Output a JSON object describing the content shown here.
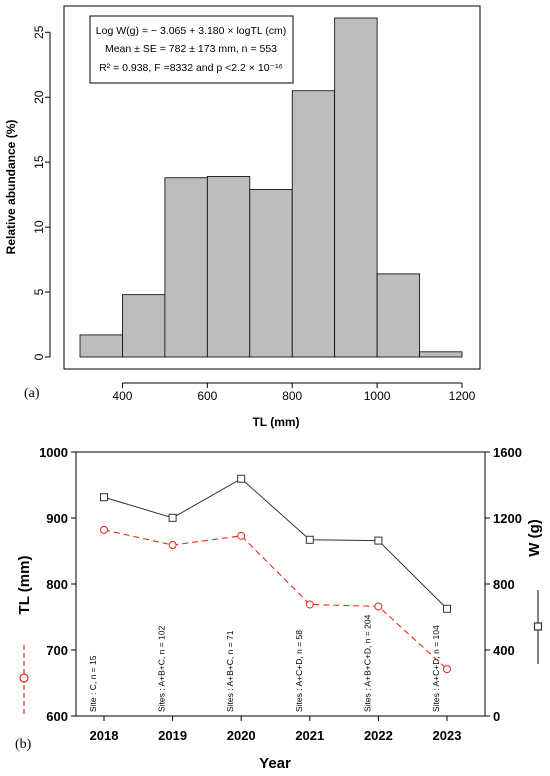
{
  "figure": {
    "panel_a_label": "(a)",
    "panel_b_label": "(b)",
    "stats": {
      "line1": "Log W(g) = − 3.065 + 3.180 × logTL (cm)",
      "line2": "Mean ± SE = 782 ± 173 mm, n = 553",
      "line3": "R² = 0.938, F =8332 and p <2.2 × 10⁻¹⁶"
    }
  },
  "chart_data": [
    {
      "type": "bar",
      "subtype": "histogram",
      "bins": [
        [
          300,
          400
        ],
        [
          400,
          500
        ],
        [
          500,
          600
        ],
        [
          600,
          700
        ],
        [
          700,
          800
        ],
        [
          800,
          900
        ],
        [
          900,
          1000
        ],
        [
          1000,
          1100
        ],
        [
          1100,
          1200
        ]
      ],
      "values": [
        1.7,
        4.8,
        13.8,
        13.9,
        12.9,
        20.5,
        26.1,
        6.4,
        0.4
      ],
      "xlabel": "TL (mm)",
      "ylabel": "Relative abundance (%)",
      "xticks": [
        400,
        600,
        800,
        1000,
        1200
      ],
      "yticks": [
        0,
        5,
        10,
        15,
        20,
        25
      ],
      "xlim": [
        300,
        1200
      ],
      "ylim": [
        0,
        26.1
      ],
      "bar_color": "#bdbdbd",
      "edge_color": "#000000",
      "grid": false
    },
    {
      "type": "line",
      "categories": [
        "2018",
        "2019",
        "2020",
        "2021",
        "2022",
        "2023"
      ],
      "xlabel": "Year",
      "series": [
        {
          "name": "TL (mm)",
          "axis": "left",
          "marker": "circle",
          "line": "dashed",
          "color": "#e8291c",
          "values": [
            882,
            859,
            873,
            769,
            766,
            671
          ]
        },
        {
          "name": "W (g)",
          "axis": "right",
          "marker": "square",
          "line": "solid",
          "color": "#333333",
          "values": [
            1326,
            1201,
            1438,
            1068,
            1063,
            650
          ]
        }
      ],
      "y_left": {
        "label": "TL (mm)",
        "ylim": [
          600,
          1000
        ],
        "ticks": [
          600,
          700,
          800,
          900,
          1000
        ]
      },
      "y_right": {
        "label": "W (g)",
        "ylim": [
          0,
          1600
        ],
        "ticks": [
          0,
          400,
          800,
          1200,
          1600
        ]
      },
      "annotations": [
        "Site : C, n = 15",
        "Sites : A+B+C, n = 102",
        "Sites : A+B+C, n = 71",
        "Sites : A+C+D, n = 58",
        "Sites : A+B+C+D, n = 204",
        "Sites : A+C+D, n = 104"
      ],
      "grid": false
    }
  ]
}
